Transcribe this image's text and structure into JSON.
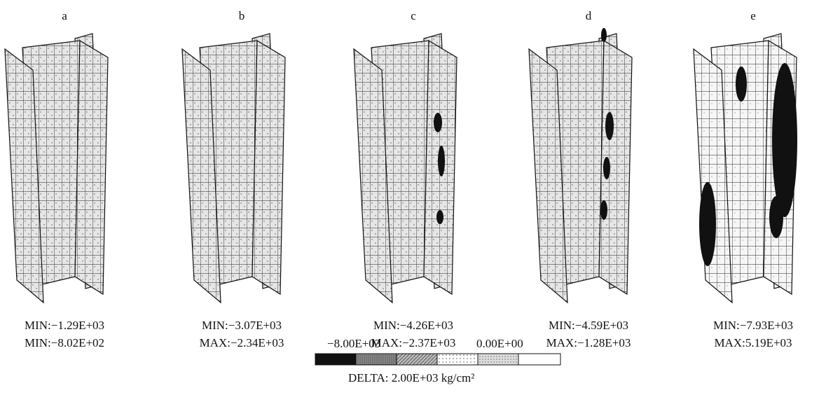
{
  "panels": [
    {
      "label": "a",
      "lines": [
        "MIN:−1.29E+03",
        "MIN:−8.02E+02"
      ]
    },
    {
      "label": "b",
      "lines": [
        "MIN:−3.07E+03",
        "MAX:−2.34E+03"
      ]
    },
    {
      "label": "c",
      "lines": [
        "MIN:−4.26E+03",
        "MAX:−2.37E+03"
      ]
    },
    {
      "label": "d",
      "lines": [
        "MIN:−4.59E+03",
        "MAX:−1.28E+03"
      ]
    },
    {
      "label": "e",
      "lines": [
        "MIN:−7.93E+03",
        "MAX:5.19E+03"
      ]
    }
  ],
  "legend": {
    "low": "−8.00E+03",
    "high": "0.00E+00",
    "delta": "DELTA:  2.00E+03  kg/cm²"
  }
}
